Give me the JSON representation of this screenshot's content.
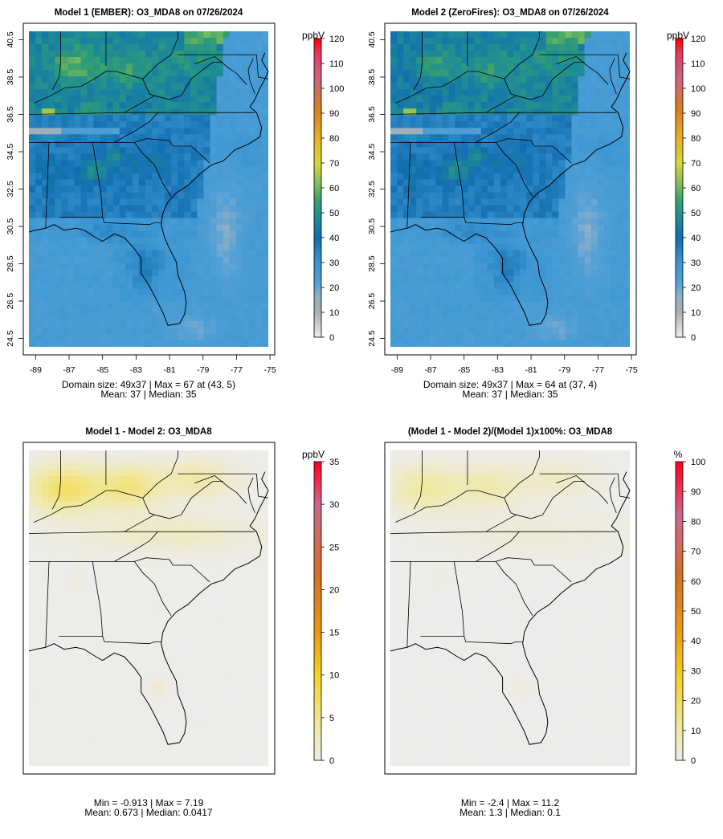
{
  "panels": [
    {
      "title": "Model 1 (EMBER): O3_MDA8 on 07/26/2024",
      "unit": "ppbV",
      "show_axes": true,
      "field": "model1",
      "cbar": {
        "scale": "abs",
        "min": 0,
        "max": 120,
        "ticks": [
          0,
          10,
          20,
          30,
          40,
          50,
          60,
          70,
          80,
          90,
          100,
          110,
          120
        ]
      },
      "stats_line1": "Domain size: 49x37 | Max = 67 at (43, 5)",
      "stats_line2": "Mean: 37 |  Median: 35"
    },
    {
      "title": "Model 2 (ZeroFires): O3_MDA8 on 07/26/2024",
      "unit": "ppbV",
      "show_axes": true,
      "field": "model2",
      "cbar": {
        "scale": "abs",
        "min": 0,
        "max": 120,
        "ticks": [
          0,
          10,
          20,
          30,
          40,
          50,
          60,
          70,
          80,
          90,
          100,
          110,
          120
        ]
      },
      "stats_line1": "Domain size: 49x37 | Max = 64 at (37, 4)",
      "stats_line2": "Mean: 37 |  Median: 35"
    },
    {
      "title": "Model 1 - Model 2: O3_MDA8",
      "unit": "ppbV",
      "show_axes": false,
      "field": "diff",
      "cbar": {
        "scale": "diff",
        "min": 0,
        "max": 35,
        "ticks": [
          0,
          5,
          10,
          15,
          20,
          25,
          30,
          35
        ]
      },
      "stats_line1": "Min = -0.913 | Max = 7.19",
      "stats_line2": "Mean: 0.673 |  Median: 0.0417"
    },
    {
      "title": "(Model 1 - Model 2)/(Model 1)x100%: O3_MDA8",
      "unit": "%",
      "show_axes": false,
      "field": "pct",
      "cbar": {
        "scale": "pct",
        "min": 0,
        "max": 100,
        "ticks": [
          0,
          10,
          20,
          30,
          40,
          50,
          60,
          70,
          80,
          90,
          100
        ]
      },
      "stats_line1": "Min = -2.4 | Max = 11.2",
      "stats_line2": "Mean: 1.3 |  Median: 0.1"
    }
  ],
  "axes": {
    "x_ticks": [
      "-89",
      "-87",
      "-85",
      "-83",
      "-81",
      "-79",
      "-77",
      "-75"
    ],
    "y_ticks": [
      "24.5",
      "26.5",
      "28.5",
      "30.5",
      "32.5",
      "34.5",
      "36.5",
      "38.5",
      "40.5"
    ]
  },
  "chart_data": [
    {
      "type": "heatmap",
      "title": "Model 1 (EMBER): O3_MDA8 on 07/26/2024",
      "grid": "49x37",
      "units": "ppbV",
      "lon_range": [
        -89,
        -75
      ],
      "lat_range": [
        24.5,
        40.5
      ],
      "max": 67,
      "max_at": [
        43,
        5
      ],
      "mean": 37,
      "median": 35,
      "colorbar_range": [
        0,
        120
      ]
    },
    {
      "type": "heatmap",
      "title": "Model 2 (ZeroFires): O3_MDA8 on 07/26/2024",
      "grid": "49x37",
      "units": "ppbV",
      "lon_range": [
        -89,
        -75
      ],
      "lat_range": [
        24.5,
        40.5
      ],
      "max": 64,
      "max_at": [
        37,
        4
      ],
      "mean": 37,
      "median": 35,
      "colorbar_range": [
        0,
        120
      ]
    },
    {
      "type": "heatmap",
      "title": "Model 1 - Model 2: O3_MDA8",
      "units": "ppbV",
      "min": -0.913,
      "max": 7.19,
      "mean": 0.673,
      "median": 0.0417,
      "colorbar_range": [
        0,
        35
      ]
    },
    {
      "type": "heatmap",
      "title": "(Model 1 - Model 2)/(Model 1)x100%: O3_MDA8",
      "units": "%",
      "min": -2.4,
      "max": 11.2,
      "mean": 1.3,
      "median": 0.1,
      "colorbar_range": [
        0,
        100
      ]
    }
  ]
}
